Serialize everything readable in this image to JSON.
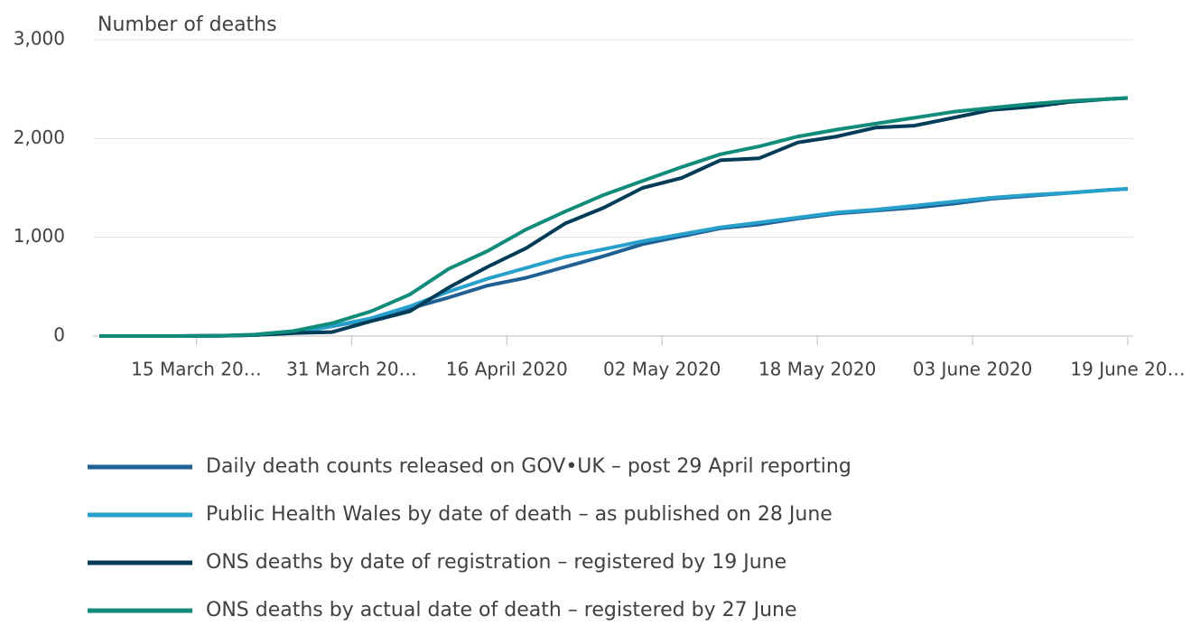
{
  "chart_data": {
    "type": "line",
    "y_label": "Number of deaths",
    "x": [
      "2020-03-05",
      "2020-03-09",
      "2020-03-13",
      "2020-03-17",
      "2020-03-21",
      "2020-03-25",
      "2020-03-29",
      "2020-04-02",
      "2020-04-06",
      "2020-04-10",
      "2020-04-14",
      "2020-04-18",
      "2020-04-22",
      "2020-04-26",
      "2020-04-30",
      "2020-05-04",
      "2020-05-08",
      "2020-05-12",
      "2020-05-16",
      "2020-05-20",
      "2020-05-24",
      "2020-05-28",
      "2020-06-01",
      "2020-06-05",
      "2020-06-09",
      "2020-06-13",
      "2020-06-17",
      "2020-06-19"
    ],
    "series": [
      {
        "name": "Daily death counts released on GOV•UK – post 29 April reporting",
        "color": "#206095",
        "values": [
          0,
          0,
          0,
          2,
          10,
          30,
          100,
          170,
          280,
          390,
          510,
          590,
          700,
          810,
          930,
          1010,
          1090,
          1130,
          1190,
          1240,
          1270,
          1300,
          1340,
          1390,
          1420,
          1450,
          1480,
          1490
        ]
      },
      {
        "name": "Public Health Wales by date of death – as published on 28 June",
        "color": "#27a0cc",
        "values": [
          0,
          0,
          0,
          2,
          10,
          30,
          100,
          180,
          300,
          450,
          580,
          690,
          800,
          880,
          960,
          1030,
          1100,
          1150,
          1200,
          1250,
          1280,
          1320,
          1360,
          1400,
          1430,
          1450,
          1480,
          1490
        ]
      },
      {
        "name": "ONS deaths by date of registration – registered by 19 June",
        "color": "#003c57",
        "values": [
          0,
          0,
          0,
          2,
          10,
          30,
          40,
          150,
          250,
          490,
          700,
          890,
          1140,
          1300,
          1500,
          1600,
          1780,
          1800,
          1960,
          2020,
          2110,
          2130,
          2210,
          2290,
          2320,
          2370,
          2400,
          2410
        ]
      },
      {
        "name": "ONS deaths by actual date of death – registered by 27 June",
        "color": "#118c7b",
        "values": [
          0,
          0,
          0,
          3,
          15,
          50,
          130,
          250,
          420,
          680,
          860,
          1080,
          1260,
          1430,
          1570,
          1710,
          1840,
          1920,
          2020,
          2090,
          2150,
          2210,
          2270,
          2310,
          2350,
          2380,
          2400,
          2410
        ]
      }
    ],
    "xlim": [
      "2020-03-05",
      "2020-06-19"
    ],
    "xticks": [
      {
        "value": "2020-03-15",
        "label": "15 March 20…"
      },
      {
        "value": "2020-03-31",
        "label": "31 March 20…"
      },
      {
        "value": "2020-04-16",
        "label": "16 April 2020"
      },
      {
        "value": "2020-05-02",
        "label": "02 May 2020"
      },
      {
        "value": "2020-05-18",
        "label": "18 May 2020"
      },
      {
        "value": "2020-06-03",
        "label": "03 June 2020"
      },
      {
        "value": "2020-06-19",
        "label": "19 June 20…"
      }
    ],
    "ylim": [
      0,
      3000
    ],
    "yticks": [
      0,
      {
        "value": 1000,
        "label": "1,000"
      },
      {
        "value": 2000,
        "label": "2,000"
      },
      {
        "value": 3000,
        "label": "3,000"
      }
    ],
    "grid": true
  }
}
